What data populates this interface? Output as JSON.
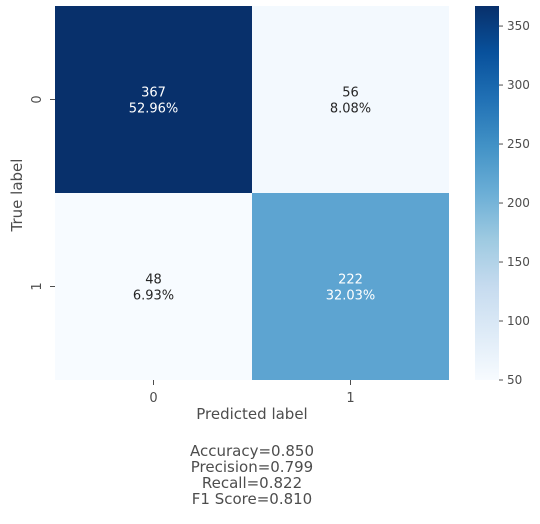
{
  "chart_data": {
    "type": "heatmap",
    "xlabel": "Predicted label",
    "ylabel": "True label",
    "x_tick_labels": [
      "0",
      "1"
    ],
    "y_tick_labels": [
      "0",
      "1"
    ],
    "counts": [
      [
        367,
        56
      ],
      [
        48,
        222
      ]
    ],
    "percentages": [
      [
        "52.96%",
        "8.08%"
      ],
      [
        "6.93%",
        "32.03%"
      ]
    ],
    "colorbar": {
      "vmin": 50,
      "vmax": 367,
      "ticks": [
        "50",
        "100",
        "150",
        "200",
        "250",
        "300",
        "350"
      ],
      "colormap": "Blues"
    },
    "grid": false,
    "metrics": [
      "Accuracy=0.850",
      "Precision=0.799",
      "Recall=0.822",
      "F1 Score=0.810"
    ]
  },
  "colors": {
    "blues_stops": [
      "#f7fbff",
      "#deebf7",
      "#c6dbef",
      "#9ecae1",
      "#6baed6",
      "#4292c6",
      "#2171b5",
      "#08519c",
      "#08306b"
    ],
    "text_dark": "#262626",
    "text_light": "#ffffff",
    "axis_text": "#4d4d4d"
  }
}
